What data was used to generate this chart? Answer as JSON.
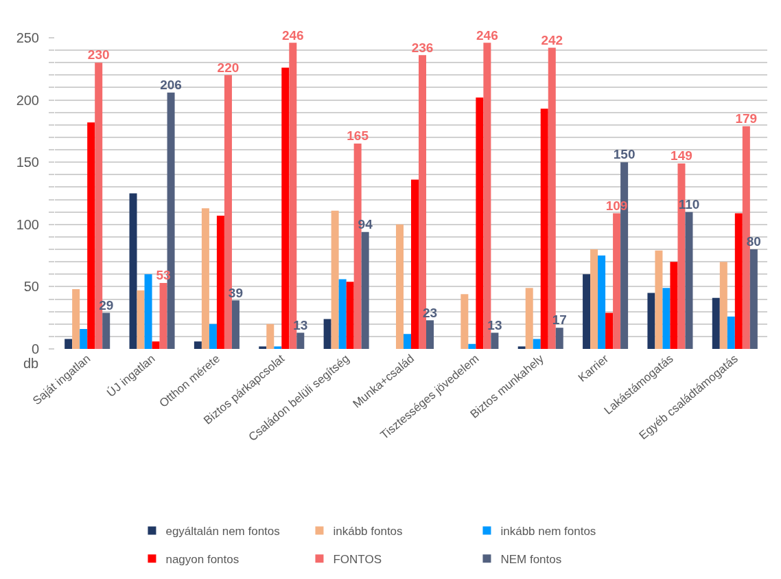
{
  "chart_data": {
    "type": "bar",
    "categories": [
      "Saját ingatlan",
      "ÚJ ingatlan",
      "Otthon mérete",
      "Biztos párkapcsolat",
      "Családon belüli segítség",
      "Munka+család",
      "Tisztességes jövedelem",
      "Biztos munkahely",
      "Karrier",
      "Lakástámogatás",
      "Egyéb családtámogatás"
    ],
    "series": [
      {
        "name": "egyáltalán nem fontos",
        "color": "#203864",
        "values": [
          8,
          125,
          6,
          2,
          24,
          0,
          0,
          2,
          60,
          45,
          41
        ]
      },
      {
        "name": "inkább fontos",
        "color": "#f4b183",
        "values": [
          48,
          47,
          113,
          20,
          111,
          100,
          44,
          49,
          80,
          79,
          70
        ]
      },
      {
        "name": "inkább nem fontos",
        "color": "#0099ff",
        "values": [
          16,
          60,
          20,
          2,
          56,
          12,
          4,
          8,
          75,
          49,
          26
        ]
      },
      {
        "name": "nagyon fontos",
        "color": "#ff0000",
        "values": [
          182,
          6,
          107,
          226,
          54,
          136,
          202,
          193,
          29,
          70,
          109
        ]
      },
      {
        "name": "FONTOS",
        "color": "#f46a6a",
        "values": [
          230,
          53,
          220,
          246,
          165,
          236,
          246,
          242,
          109,
          149,
          179
        ],
        "value_labels": [
          "230",
          "53",
          "220",
          "246",
          "165",
          "236",
          "246",
          "242",
          "109",
          "149",
          "179"
        ]
      },
      {
        "name": "NEM fontos",
        "color": "#52607f",
        "values": [
          29,
          206,
          39,
          13,
          94,
          23,
          13,
          17,
          150,
          110,
          80
        ],
        "value_labels": [
          "29",
          "206",
          "39",
          "13",
          "94",
          "23",
          "13",
          "17",
          "150",
          "110",
          "80"
        ]
      }
    ],
    "ylabel": "db",
    "ylim": [
      0,
      250
    ],
    "yticks": [
      0,
      {
        "value": 10,
        "label": null
      },
      {
        "value": 20,
        "label": null
      },
      {
        "value": 30,
        "label": null
      },
      {
        "value": 40,
        "label": null
      },
      50,
      {
        "value": 60,
        "label": null
      },
      {
        "value": 70,
        "label": null
      },
      {
        "value": 80,
        "label": null
      },
      {
        "value": 90,
        "label": null
      },
      100,
      {
        "value": 110,
        "label": null
      },
      {
        "value": 120,
        "label": null
      },
      {
        "value": 130,
        "label": null
      },
      {
        "value": 140,
        "label": null
      },
      150,
      {
        "value": 160,
        "label": null
      },
      {
        "value": 170,
        "label": null
      },
      {
        "value": 180,
        "label": null
      },
      {
        "value": 190,
        "label": null
      },
      200,
      {
        "value": 210,
        "label": null
      },
      {
        "value": 220,
        "label": null
      },
      {
        "value": 230,
        "label": null
      },
      {
        "value": 240,
        "label": null
      },
      250
    ],
    "grid": "y",
    "legend": "bottom"
  }
}
